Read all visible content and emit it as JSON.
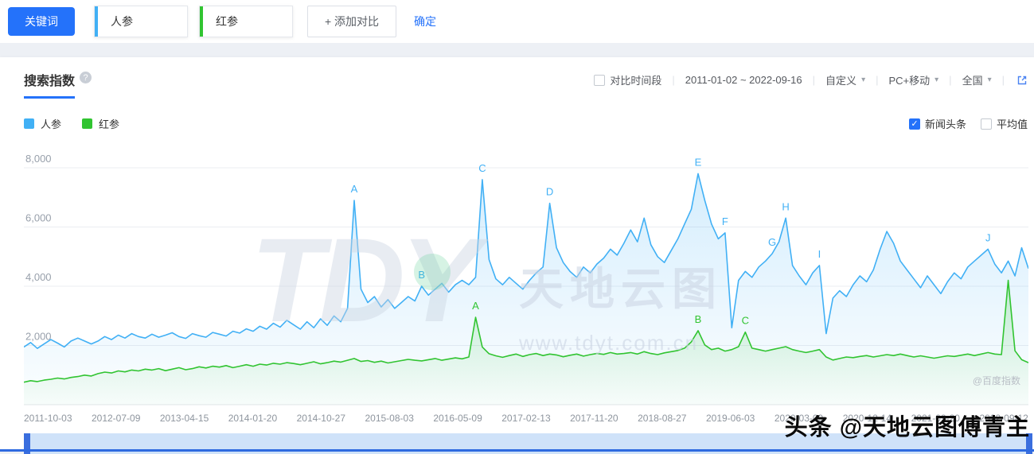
{
  "toolbar": {
    "keyword_label": "关键词",
    "keywords": [
      {
        "text": "人参",
        "color": "#41b0f5"
      },
      {
        "text": "红参",
        "color": "#31c431"
      }
    ],
    "add_compare_label": "+ 添加对比",
    "confirm_label": "确定"
  },
  "panel": {
    "title": "搜索指数",
    "controls": {
      "compare_checkbox_label": "对比时间段",
      "date_range": "2011-01-02 ~ 2022-09-16",
      "range_mode": "自定义",
      "device": "PC+移动",
      "region": "全国"
    },
    "legend": [
      {
        "label": "人参",
        "color": "#41b0f5"
      },
      {
        "label": "红参",
        "color": "#31c431"
      }
    ],
    "toggles": [
      {
        "label": "新闻头条",
        "checked": true
      },
      {
        "label": "平均值",
        "checked": false
      }
    ]
  },
  "icons": {
    "help": "?",
    "caret": "▾",
    "check": "✓"
  },
  "watermark": {
    "big": "TDY",
    "name": "天地云图",
    "url": "www.tdyt.com.cn",
    "source": "@百度指数"
  },
  "overlay_watermark": "头条 @天地云图傅青主",
  "chart_data": {
    "type": "line",
    "title": "搜索指数",
    "xlabel": "",
    "ylabel": "",
    "ylim": [
      0,
      8400
    ],
    "grid": true,
    "legend_position": "top-left",
    "yticks": [
      2000,
      4000,
      6000,
      8000
    ],
    "ytick_labels": [
      "2,000",
      "4,000",
      "6,000",
      "8,000"
    ],
    "x_tick_labels": [
      "2011-10-03",
      "2012-07-09",
      "2013-04-15",
      "2014-01-20",
      "2014-10-27",
      "2015-08-03",
      "2016-05-09",
      "2017-02-13",
      "2017-11-20",
      "2018-08-27",
      "2019-06-03",
      "2020-03-09",
      "2020-12-14",
      "2021-09-20",
      "2022-09-12"
    ],
    "series": [
      {
        "name": "人参",
        "color": "#41b0f5",
        "values": [
          1950,
          2100,
          1900,
          2050,
          2200,
          2080,
          1950,
          2150,
          2250,
          2150,
          2050,
          2150,
          2300,
          2200,
          2350,
          2250,
          2400,
          2300,
          2250,
          2380,
          2280,
          2350,
          2430,
          2300,
          2240,
          2400,
          2330,
          2280,
          2440,
          2380,
          2320,
          2480,
          2420,
          2560,
          2480,
          2650,
          2550,
          2750,
          2620,
          2850,
          2700,
          2550,
          2800,
          2600,
          2900,
          2680,
          3000,
          2800,
          3250,
          6900,
          3900,
          3450,
          3650,
          3300,
          3550,
          3250,
          3450,
          3650,
          3500,
          4000,
          3700,
          3900,
          4100,
          3800,
          4050,
          4200,
          4050,
          4300,
          7600,
          4900,
          4250,
          4050,
          4300,
          4100,
          3900,
          4200,
          4450,
          4650,
          6800,
          5300,
          4800,
          4500,
          4300,
          4650,
          4450,
          4750,
          4950,
          5250,
          5050,
          5450,
          5900,
          5500,
          6300,
          5400,
          5000,
          4800,
          5200,
          5600,
          6100,
          6600,
          7800,
          6900,
          6100,
          5600,
          5800,
          2600,
          4200,
          4500,
          4300,
          4650,
          4850,
          5100,
          5500,
          6300,
          4700,
          4350,
          4050,
          4450,
          4700,
          2400,
          3600,
          3850,
          3650,
          4050,
          4350,
          4150,
          4550,
          5250,
          5850,
          5450,
          4850,
          4550,
          4250,
          3950,
          4350,
          4050,
          3750,
          4150,
          4450,
          4250,
          4650,
          4850,
          5050,
          5250,
          4750,
          4450,
          4850,
          4350,
          5300,
          4600
        ]
      },
      {
        "name": "红参",
        "color": "#31c431",
        "values": [
          760,
          810,
          780,
          830,
          860,
          900,
          870,
          920,
          950,
          1000,
          970,
          1050,
          1100,
          1070,
          1140,
          1110,
          1170,
          1140,
          1200,
          1170,
          1220,
          1150,
          1200,
          1250,
          1180,
          1220,
          1280,
          1240,
          1300,
          1270,
          1320,
          1250,
          1300,
          1350,
          1300,
          1370,
          1340,
          1400,
          1370,
          1420,
          1390,
          1350,
          1400,
          1450,
          1380,
          1420,
          1470,
          1440,
          1500,
          1560,
          1460,
          1490,
          1430,
          1470,
          1410,
          1450,
          1490,
          1530,
          1500,
          1480,
          1520,
          1560,
          1500,
          1540,
          1580,
          1550,
          1610,
          2950,
          1950,
          1720,
          1650,
          1600,
          1660,
          1710,
          1630,
          1690,
          1730,
          1660,
          1710,
          1680,
          1620,
          1670,
          1710,
          1640,
          1690,
          1730,
          1700,
          1760,
          1710,
          1730,
          1760,
          1710,
          1790,
          1730,
          1690,
          1750,
          1790,
          1830,
          1910,
          2120,
          2500,
          2020,
          1860,
          1910,
          1810,
          1860,
          1960,
          2450,
          1910,
          1860,
          1810,
          1860,
          1910,
          1960,
          1860,
          1810,
          1760,
          1810,
          1860,
          1610,
          1510,
          1560,
          1610,
          1590,
          1630,
          1660,
          1610,
          1650,
          1690,
          1660,
          1710,
          1660,
          1610,
          1650,
          1610,
          1570,
          1610,
          1650,
          1630,
          1670,
          1710,
          1660,
          1710,
          1760,
          1710,
          1690,
          4200,
          1820,
          1520,
          1420
        ]
      }
    ],
    "annotations": [
      {
        "series": 0,
        "index": 49,
        "label": "A"
      },
      {
        "series": 0,
        "index": 59,
        "label": "B"
      },
      {
        "series": 0,
        "index": 68,
        "label": "C"
      },
      {
        "series": 0,
        "index": 78,
        "label": "D"
      },
      {
        "series": 0,
        "index": 100,
        "label": "E"
      },
      {
        "series": 0,
        "index": 104,
        "label": "F"
      },
      {
        "series": 0,
        "index": 111,
        "label": "G"
      },
      {
        "series": 0,
        "index": 113,
        "label": "H"
      },
      {
        "series": 0,
        "index": 118,
        "label": "I"
      },
      {
        "series": 0,
        "index": 143,
        "label": "J"
      },
      {
        "series": 1,
        "index": 67,
        "label": "A"
      },
      {
        "series": 1,
        "index": 100,
        "label": "B"
      },
      {
        "series": 1,
        "index": 107,
        "label": "C"
      }
    ]
  }
}
